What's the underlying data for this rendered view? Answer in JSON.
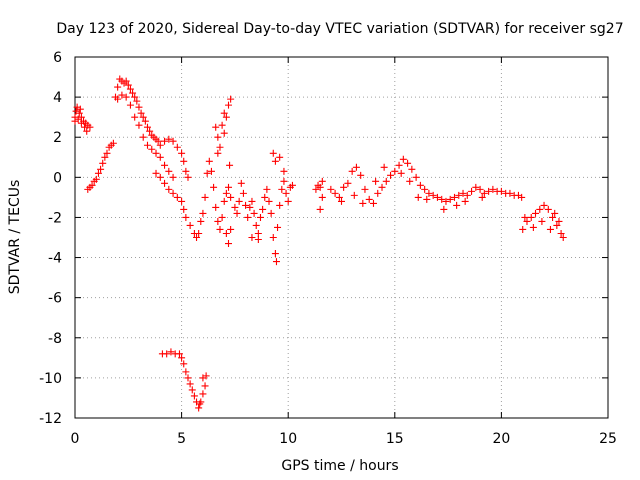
{
  "chart_data": {
    "type": "scatter",
    "title": "Day 123 of 2020, Sidereal Day-to-day VTEC variation (SDTVAR) for receiver sg27",
    "xlabel": "GPS time / hours",
    "ylabel": "SDTVAR / TECUs",
    "xlim": [
      0,
      25
    ],
    "ylim": [
      -12,
      6
    ],
    "xticks": [
      0,
      5,
      10,
      15,
      20,
      25
    ],
    "yticks": [
      -12,
      -10,
      -8,
      -6,
      -4,
      -2,
      0,
      2,
      4,
      6
    ],
    "grid": true,
    "marker": "+",
    "color": "#ff0000",
    "series": [
      {
        "name": "SDTVAR",
        "points": [
          [
            0.0,
            3.0
          ],
          [
            0.1,
            3.5
          ],
          [
            0.2,
            3.2
          ],
          [
            0.3,
            3.0
          ],
          [
            0.4,
            2.8
          ],
          [
            0.5,
            2.7
          ],
          [
            0.6,
            2.6
          ],
          [
            0.7,
            2.5
          ],
          [
            0.0,
            2.8
          ],
          [
            0.15,
            2.9
          ],
          [
            0.3,
            2.7
          ],
          [
            0.45,
            2.5
          ],
          [
            0.55,
            2.3
          ],
          [
            0.05,
            3.3
          ],
          [
            0.25,
            3.4
          ],
          [
            0.6,
            -0.6
          ],
          [
            0.8,
            -0.4
          ],
          [
            1.0,
            -0.1
          ],
          [
            1.2,
            0.4
          ],
          [
            1.4,
            1.0
          ],
          [
            1.6,
            1.5
          ],
          [
            1.8,
            1.7
          ],
          [
            0.7,
            -0.5
          ],
          [
            0.9,
            -0.2
          ],
          [
            1.1,
            0.2
          ],
          [
            1.3,
            0.7
          ],
          [
            1.5,
            1.2
          ],
          [
            1.7,
            1.6
          ],
          [
            1.9,
            4.0
          ],
          [
            2.0,
            4.5
          ],
          [
            2.1,
            4.9
          ],
          [
            2.2,
            4.8
          ],
          [
            2.3,
            4.7
          ],
          [
            2.4,
            4.8
          ],
          [
            2.5,
            4.6
          ],
          [
            2.6,
            4.4
          ],
          [
            2.7,
            4.2
          ],
          [
            2.8,
            4.0
          ],
          [
            2.9,
            3.8
          ],
          [
            3.0,
            3.5
          ],
          [
            3.1,
            3.2
          ],
          [
            3.2,
            3.0
          ],
          [
            3.3,
            2.8
          ],
          [
            3.4,
            2.5
          ],
          [
            3.5,
            2.3
          ],
          [
            3.6,
            2.1
          ],
          [
            3.7,
            2.0
          ],
          [
            3.8,
            1.9
          ],
          [
            3.9,
            1.8
          ],
          [
            4.0,
            1.6
          ],
          [
            2.0,
            3.9
          ],
          [
            2.2,
            4.1
          ],
          [
            2.4,
            4.0
          ],
          [
            2.6,
            3.6
          ],
          [
            2.8,
            3.0
          ],
          [
            3.0,
            2.6
          ],
          [
            3.2,
            2.0
          ],
          [
            3.4,
            1.6
          ],
          [
            3.6,
            1.4
          ],
          [
            3.8,
            1.2
          ],
          [
            4.0,
            1.0
          ],
          [
            4.2,
            0.6
          ],
          [
            4.4,
            0.3
          ],
          [
            4.6,
            0.0
          ],
          [
            4.2,
            1.8
          ],
          [
            4.4,
            1.9
          ],
          [
            4.6,
            1.8
          ],
          [
            4.8,
            1.5
          ],
          [
            5.0,
            1.2
          ],
          [
            5.1,
            0.8
          ],
          [
            5.2,
            0.3
          ],
          [
            5.3,
            0.0
          ],
          [
            3.8,
            0.2
          ],
          [
            4.0,
            0.0
          ],
          [
            4.2,
            -0.3
          ],
          [
            4.4,
            -0.6
          ],
          [
            4.6,
            -0.8
          ],
          [
            4.8,
            -1.0
          ],
          [
            5.0,
            -1.2
          ],
          [
            5.1,
            -1.6
          ],
          [
            5.2,
            -2.0
          ],
          [
            5.4,
            -2.4
          ],
          [
            5.6,
            -2.8
          ],
          [
            5.7,
            -3.0
          ],
          [
            5.8,
            -2.8
          ],
          [
            5.9,
            -2.2
          ],
          [
            6.0,
            -1.8
          ],
          [
            6.1,
            -1.0
          ],
          [
            6.2,
            0.2
          ],
          [
            6.3,
            0.8
          ],
          [
            6.4,
            0.3
          ],
          [
            6.5,
            -0.5
          ],
          [
            6.6,
            -1.5
          ],
          [
            6.7,
            -2.2
          ],
          [
            6.8,
            -2.6
          ],
          [
            6.9,
            -2.0
          ],
          [
            7.0,
            -1.2
          ],
          [
            7.1,
            -0.8
          ],
          [
            7.2,
            -0.5
          ],
          [
            7.3,
            -1.0
          ],
          [
            6.6,
            2.5
          ],
          [
            6.7,
            2.0
          ],
          [
            6.8,
            1.5
          ],
          [
            6.9,
            2.6
          ],
          [
            7.0,
            3.2
          ],
          [
            7.1,
            3.0
          ],
          [
            7.2,
            3.6
          ],
          [
            7.3,
            3.9
          ],
          [
            6.7,
            1.2
          ],
          [
            7.0,
            2.2
          ],
          [
            7.25,
            0.6
          ],
          [
            7.1,
            -2.8
          ],
          [
            7.2,
            -3.3
          ],
          [
            7.3,
            -2.6
          ],
          [
            7.5,
            -1.5
          ],
          [
            7.6,
            -1.8
          ],
          [
            7.7,
            -1.2
          ],
          [
            7.8,
            -0.3
          ],
          [
            7.9,
            -0.8
          ],
          [
            8.0,
            -1.4
          ],
          [
            8.1,
            -2.0
          ],
          [
            8.2,
            -1.5
          ],
          [
            8.3,
            -1.2
          ],
          [
            8.4,
            -1.8
          ],
          [
            8.5,
            -2.4
          ],
          [
            8.6,
            -2.8
          ],
          [
            8.7,
            -2.0
          ],
          [
            8.8,
            -1.6
          ],
          [
            8.9,
            -1.0
          ],
          [
            9.0,
            -0.6
          ],
          [
            9.1,
            -1.2
          ],
          [
            9.2,
            -1.8
          ],
          [
            9.3,
            -3.0
          ],
          [
            9.4,
            -3.8
          ],
          [
            9.45,
            -4.2
          ],
          [
            9.5,
            -2.5
          ],
          [
            9.6,
            -1.4
          ],
          [
            9.7,
            -0.6
          ],
          [
            9.8,
            -0.2
          ],
          [
            9.9,
            -0.8
          ],
          [
            10.0,
            -1.2
          ],
          [
            10.1,
            -0.5
          ],
          [
            10.2,
            -0.4
          ],
          [
            9.3,
            1.2
          ],
          [
            9.4,
            0.8
          ],
          [
            9.6,
            1.0
          ],
          [
            9.8,
            0.3
          ],
          [
            8.6,
            -3.1
          ],
          [
            8.3,
            -3.0
          ],
          [
            11.3,
            -0.6
          ],
          [
            11.4,
            -0.4
          ],
          [
            11.5,
            -0.5
          ],
          [
            11.6,
            -0.2
          ],
          [
            11.5,
            -1.6
          ],
          [
            11.6,
            -1.0
          ],
          [
            12.0,
            -0.6
          ],
          [
            12.2,
            -0.8
          ],
          [
            12.4,
            -1.0
          ],
          [
            12.6,
            -0.5
          ],
          [
            12.8,
            -0.3
          ],
          [
            13.0,
            0.3
          ],
          [
            13.2,
            0.5
          ],
          [
            13.4,
            0.1
          ],
          [
            13.6,
            -0.6
          ],
          [
            13.8,
            -1.1
          ],
          [
            14.0,
            -1.3
          ],
          [
            14.2,
            -0.8
          ],
          [
            14.4,
            -0.5
          ],
          [
            14.6,
            -0.2
          ],
          [
            14.8,
            0.1
          ],
          [
            15.0,
            0.3
          ],
          [
            15.2,
            0.6
          ],
          [
            15.4,
            0.9
          ],
          [
            15.6,
            0.7
          ],
          [
            15.8,
            0.4
          ],
          [
            16.0,
            0.0
          ],
          [
            16.2,
            -0.4
          ],
          [
            16.4,
            -0.6
          ],
          [
            16.6,
            -0.8
          ],
          [
            16.8,
            -0.9
          ],
          [
            17.0,
            -1.0
          ],
          [
            17.2,
            -1.1
          ],
          [
            17.4,
            -1.2
          ],
          [
            17.6,
            -1.1
          ],
          [
            17.8,
            -1.0
          ],
          [
            18.0,
            -0.9
          ],
          [
            18.2,
            -0.8
          ],
          [
            18.4,
            -0.9
          ],
          [
            18.6,
            -0.7
          ],
          [
            18.8,
            -0.5
          ],
          [
            19.0,
            -0.6
          ],
          [
            19.2,
            -0.8
          ],
          [
            19.4,
            -0.7
          ],
          [
            19.6,
            -0.6
          ],
          [
            19.8,
            -0.7
          ],
          [
            20.0,
            -0.7
          ],
          [
            20.2,
            -0.8
          ],
          [
            20.4,
            -0.8
          ],
          [
            20.6,
            -0.9
          ],
          [
            20.8,
            -0.9
          ],
          [
            20.95,
            -1.0
          ],
          [
            12.5,
            -1.2
          ],
          [
            13.1,
            -0.9
          ],
          [
            13.5,
            -1.3
          ],
          [
            14.1,
            -0.2
          ],
          [
            14.5,
            0.5
          ],
          [
            15.3,
            0.2
          ],
          [
            15.7,
            -0.2
          ],
          [
            16.1,
            -1.0
          ],
          [
            16.5,
            -1.1
          ],
          [
            17.3,
            -1.6
          ],
          [
            17.9,
            -1.4
          ],
          [
            18.3,
            -1.2
          ],
          [
            19.1,
            -1.0
          ],
          [
            21.0,
            -2.6
          ],
          [
            21.2,
            -2.2
          ],
          [
            21.4,
            -2.0
          ],
          [
            21.6,
            -1.8
          ],
          [
            21.8,
            -1.6
          ],
          [
            22.0,
            -1.4
          ],
          [
            22.2,
            -1.6
          ],
          [
            22.4,
            -2.0
          ],
          [
            22.6,
            -2.4
          ],
          [
            22.8,
            -2.8
          ],
          [
            22.9,
            -3.0
          ],
          [
            21.1,
            -2.0
          ],
          [
            21.5,
            -2.5
          ],
          [
            21.9,
            -2.2
          ],
          [
            22.3,
            -2.6
          ],
          [
            22.7,
            -2.2
          ],
          [
            22.5,
            -1.8
          ],
          [
            4.1,
            -8.8
          ],
          [
            4.3,
            -8.8
          ],
          [
            4.5,
            -8.7
          ],
          [
            4.7,
            -8.8
          ],
          [
            4.9,
            -8.8
          ],
          [
            5.0,
            -9.0
          ],
          [
            5.1,
            -9.3
          ],
          [
            5.2,
            -9.7
          ],
          [
            5.3,
            -10.0
          ],
          [
            5.4,
            -10.3
          ],
          [
            5.5,
            -10.6
          ],
          [
            5.6,
            -10.9
          ],
          [
            5.7,
            -11.2
          ],
          [
            5.8,
            -11.5
          ],
          [
            5.9,
            -11.2
          ],
          [
            6.0,
            -10.8
          ],
          [
            6.1,
            -10.4
          ],
          [
            6.0,
            -10.0
          ],
          [
            6.15,
            -9.9
          ],
          [
            5.85,
            -11.3
          ]
        ]
      }
    ]
  }
}
